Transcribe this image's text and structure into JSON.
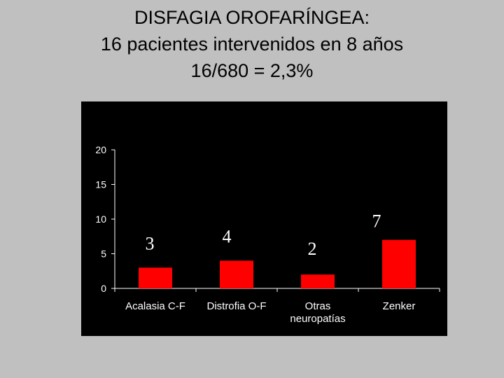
{
  "slide": {
    "title_lines": [
      "DISFAGIA OROFARÍNGEA:",
      "16 pacientes intervenidos en 8 años",
      "16/680 = 2,3%"
    ]
  },
  "colors": {
    "slide_background": "#c0c0c0",
    "chart_background": "#000000",
    "bar": "#ff0000",
    "text": "#ffffff"
  },
  "chart_data": {
    "type": "bar",
    "categories": [
      "Acalasia C-F",
      "Distrofia O-F",
      "Otras neuropatías",
      "Zenker"
    ],
    "category_label_lines": [
      [
        "Acalasia C-F"
      ],
      [
        "Distrofia O-F"
      ],
      [
        "Otras",
        "neuropatías"
      ],
      [
        "Zenker"
      ]
    ],
    "values": [
      3,
      4,
      2,
      7
    ],
    "data_labels": [
      "3",
      "4",
      "2",
      "7"
    ],
    "yticks": [
      "0",
      "5",
      "10",
      "15",
      "20"
    ],
    "ylim": [
      0,
      20
    ],
    "grid": false,
    "legend": "none",
    "title": "",
    "xlabel": "",
    "ylabel": ""
  }
}
